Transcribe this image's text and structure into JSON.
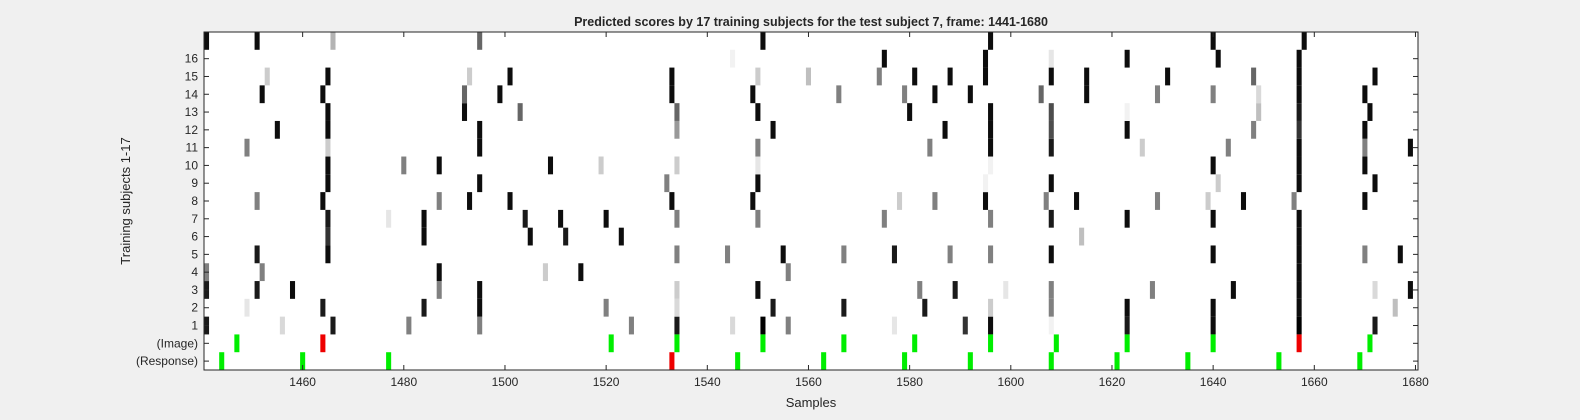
{
  "colors": {
    "background": "#f0f0f0",
    "plot_background": "#ffffff",
    "axis": "#262626",
    "correct_marker": "#00ee00",
    "incorrect_marker": "#ee0000"
  },
  "chart_data": {
    "type": "heatmap",
    "title": "Predicted scores by 17 training subjects for the test subject 7, frame: 1441-1680",
    "xlabel": "Samples",
    "ylabel": "Training subjects 1-17",
    "xlim": [
      1441,
      1680
    ],
    "xticks": [
      1460,
      1480,
      1500,
      1520,
      1540,
      1560,
      1580,
      1600,
      1620,
      1640,
      1660,
      1680
    ],
    "row_labels": [
      "(Response)",
      "(Image)",
      "1",
      "2",
      "3",
      "4",
      "5",
      "6",
      "7",
      "8",
      "9",
      "10",
      "11",
      "12",
      "13",
      "14",
      "15",
      "16",
      ""
    ],
    "grid": false,
    "legend": "none",
    "marker_rows": {
      "image": [
        {
          "x": 1447,
          "color": "green"
        },
        {
          "x": 1464,
          "color": "red"
        },
        {
          "x": 1521,
          "color": "green"
        },
        {
          "x": 1534,
          "color": "green"
        },
        {
          "x": 1551,
          "color": "green"
        },
        {
          "x": 1567,
          "color": "green"
        },
        {
          "x": 1581,
          "color": "green"
        },
        {
          "x": 1596,
          "color": "green"
        },
        {
          "x": 1609,
          "color": "green"
        },
        {
          "x": 1623,
          "color": "green"
        },
        {
          "x": 1640,
          "color": "green"
        },
        {
          "x": 1657,
          "color": "red"
        },
        {
          "x": 1671,
          "color": "green"
        }
      ],
      "response": [
        {
          "x": 1444,
          "color": "green"
        },
        {
          "x": 1460,
          "color": "green"
        },
        {
          "x": 1477,
          "color": "green"
        },
        {
          "x": 1533,
          "color": "red"
        },
        {
          "x": 1546,
          "color": "green"
        },
        {
          "x": 1563,
          "color": "green"
        },
        {
          "x": 1579,
          "color": "green"
        },
        {
          "x": 1592,
          "color": "green"
        },
        {
          "x": 1608,
          "color": "green"
        },
        {
          "x": 1621,
          "color": "green"
        },
        {
          "x": 1635,
          "color": "green"
        },
        {
          "x": 1653,
          "color": "green"
        },
        {
          "x": 1669,
          "color": "green"
        }
      ]
    },
    "subject_scores": [
      {
        "row": 1,
        "marks": [
          [
            1441,
            0.1
          ],
          [
            1456,
            0.85
          ],
          [
            1466,
            0.1
          ],
          [
            1481,
            0.5
          ],
          [
            1495,
            0.5
          ],
          [
            1551,
            0.0
          ],
          [
            1525,
            0.5
          ],
          [
            1534,
            0.1
          ],
          [
            1545,
            0.85
          ],
          [
            1556,
            0.5
          ],
          [
            1577,
            0.9
          ],
          [
            1591,
            0.2
          ],
          [
            1596,
            0.05
          ],
          [
            1608,
            0.95
          ],
          [
            1623,
            0.1
          ],
          [
            1640,
            0.05
          ],
          [
            1657,
            0.0
          ],
          [
            1672,
            0.1
          ]
        ]
      },
      {
        "row": 2,
        "marks": [
          [
            1449,
            0.9
          ],
          [
            1464,
            0.1
          ],
          [
            1484,
            0.1
          ],
          [
            1495,
            0.05
          ],
          [
            1520,
            0.5
          ],
          [
            1534,
            0.85
          ],
          [
            1553,
            0.1
          ],
          [
            1567,
            0.1
          ],
          [
            1583,
            0.1
          ],
          [
            1596,
            0.8
          ],
          [
            1608,
            0.5
          ],
          [
            1623,
            0.05
          ],
          [
            1640,
            0.05
          ],
          [
            1657,
            0.05
          ],
          [
            1676,
            0.75
          ]
        ]
      },
      {
        "row": 3,
        "marks": [
          [
            1441,
            0.1
          ],
          [
            1451,
            0.1
          ],
          [
            1458,
            0.05
          ],
          [
            1487,
            0.5
          ],
          [
            1495,
            0.05
          ],
          [
            1534,
            0.8
          ],
          [
            1550,
            0.05
          ],
          [
            1582,
            0.5
          ],
          [
            1589,
            0.1
          ],
          [
            1599,
            0.9
          ],
          [
            1608,
            0.5
          ],
          [
            1628,
            0.5
          ],
          [
            1644,
            0.05
          ],
          [
            1657,
            0.05
          ],
          [
            1672,
            0.85
          ],
          [
            1679,
            0.05
          ]
        ]
      },
      {
        "row": 4,
        "marks": [
          [
            1441,
            0.5
          ],
          [
            1452,
            0.5
          ],
          [
            1487,
            0.05
          ],
          [
            1508,
            0.8
          ],
          [
            1515,
            0.05
          ],
          [
            1556,
            0.5
          ],
          [
            1657,
            0.05
          ]
        ]
      },
      {
        "row": 5,
        "marks": [
          [
            1451,
            0.1
          ],
          [
            1465,
            0.05
          ],
          [
            1534,
            0.5
          ],
          [
            1544,
            0.5
          ],
          [
            1555,
            0.05
          ],
          [
            1567,
            0.5
          ],
          [
            1577,
            0.1
          ],
          [
            1588,
            0.5
          ],
          [
            1596,
            0.5
          ],
          [
            1608,
            0.05
          ],
          [
            1640,
            0.05
          ],
          [
            1657,
            0.05
          ],
          [
            1670,
            0.5
          ],
          [
            1677,
            0.05
          ]
        ]
      },
      {
        "row": 6,
        "marks": [
          [
            1465,
            0.2
          ],
          [
            1484,
            0.05
          ],
          [
            1505,
            0.05
          ],
          [
            1512,
            0.1
          ],
          [
            1523,
            0.05
          ],
          [
            1614,
            0.75
          ],
          [
            1657,
            0.05
          ]
        ]
      },
      {
        "row": 7,
        "marks": [
          [
            1465,
            0.1
          ],
          [
            1477,
            0.9
          ],
          [
            1484,
            0.05
          ],
          [
            1504,
            0.1
          ],
          [
            1511,
            0.05
          ],
          [
            1520,
            0.05
          ],
          [
            1534,
            0.5
          ],
          [
            1550,
            0.5
          ],
          [
            1575,
            0.5
          ],
          [
            1596,
            0.5
          ],
          [
            1608,
            0.1
          ],
          [
            1623,
            0.05
          ],
          [
            1640,
            0.05
          ],
          [
            1657,
            0.05
          ]
        ]
      },
      {
        "row": 8,
        "marks": [
          [
            1451,
            0.5
          ],
          [
            1464,
            0.05
          ],
          [
            1487,
            0.5
          ],
          [
            1493,
            0.05
          ],
          [
            1501,
            0.05
          ],
          [
            1533,
            0.05
          ],
          [
            1549,
            0.05
          ],
          [
            1578,
            0.8
          ],
          [
            1585,
            0.5
          ],
          [
            1595,
            0.05
          ],
          [
            1607,
            0.5
          ],
          [
            1613,
            0.05
          ],
          [
            1629,
            0.5
          ],
          [
            1639,
            0.8
          ],
          [
            1646,
            0.05
          ],
          [
            1656,
            0.5
          ],
          [
            1670,
            0.05
          ]
        ]
      },
      {
        "row": 9,
        "marks": [
          [
            1465,
            0.05
          ],
          [
            1495,
            0.05
          ],
          [
            1532,
            0.5
          ],
          [
            1550,
            0.05
          ],
          [
            1595,
            0.95
          ],
          [
            1608,
            0.05
          ],
          [
            1641,
            0.8
          ],
          [
            1657,
            0.05
          ],
          [
            1672,
            0.05
          ]
        ]
      },
      {
        "row": 10,
        "marks": [
          [
            1465,
            0.05
          ],
          [
            1480,
            0.5
          ],
          [
            1487,
            0.05
          ],
          [
            1509,
            0.05
          ],
          [
            1519,
            0.8
          ],
          [
            1534,
            0.8
          ],
          [
            1550,
            0.9
          ],
          [
            1596,
            0.95
          ],
          [
            1640,
            0.05
          ],
          [
            1657,
            0.05
          ],
          [
            1670,
            0.05
          ]
        ]
      },
      {
        "row": 11,
        "marks": [
          [
            1449,
            0.5
          ],
          [
            1465,
            0.8
          ],
          [
            1495,
            0.05
          ],
          [
            1550,
            0.5
          ],
          [
            1584,
            0.5
          ],
          [
            1596,
            0.05
          ],
          [
            1608,
            0.1
          ],
          [
            1626,
            0.8
          ],
          [
            1643,
            0.5
          ],
          [
            1657,
            0.05
          ],
          [
            1670,
            0.5
          ],
          [
            1679,
            0.05
          ]
        ]
      },
      {
        "row": 12,
        "marks": [
          [
            1455,
            0.05
          ],
          [
            1465,
            0.05
          ],
          [
            1495,
            0.05
          ],
          [
            1534,
            0.6
          ],
          [
            1553,
            0.05
          ],
          [
            1587,
            0.05
          ],
          [
            1596,
            0.05
          ],
          [
            1608,
            0.3
          ],
          [
            1623,
            0.05
          ],
          [
            1648,
            0.5
          ],
          [
            1657,
            0.2
          ],
          [
            1670,
            0.05
          ]
        ]
      },
      {
        "row": 13,
        "marks": [
          [
            1465,
            0.05
          ],
          [
            1492,
            0.05
          ],
          [
            1503,
            0.4
          ],
          [
            1534,
            0.4
          ],
          [
            1550,
            0.05
          ],
          [
            1580,
            0.05
          ],
          [
            1596,
            0.05
          ],
          [
            1608,
            0.3
          ],
          [
            1623,
            0.95
          ],
          [
            1649,
            0.75
          ],
          [
            1657,
            0.1
          ],
          [
            1671,
            0.05
          ]
        ]
      },
      {
        "row": 14,
        "marks": [
          [
            1452,
            0.05
          ],
          [
            1464,
            0.05
          ],
          [
            1492,
            0.4
          ],
          [
            1499,
            0.05
          ],
          [
            1533,
            0.05
          ],
          [
            1549,
            0.05
          ],
          [
            1566,
            0.5
          ],
          [
            1579,
            0.5
          ],
          [
            1585,
            0.05
          ],
          [
            1592,
            0.05
          ],
          [
            1606,
            0.4
          ],
          [
            1615,
            0.05
          ],
          [
            1629,
            0.5
          ],
          [
            1640,
            0.5
          ],
          [
            1649,
            0.85
          ],
          [
            1657,
            0.05
          ],
          [
            1670,
            0.05
          ]
        ]
      },
      {
        "row": 15,
        "marks": [
          [
            1453,
            0.8
          ],
          [
            1465,
            0.05
          ],
          [
            1493,
            0.8
          ],
          [
            1501,
            0.05
          ],
          [
            1533,
            0.05
          ],
          [
            1550,
            0.8
          ],
          [
            1560,
            0.75
          ],
          [
            1574,
            0.5
          ],
          [
            1581,
            0.05
          ],
          [
            1588,
            0.05
          ],
          [
            1595,
            0.05
          ],
          [
            1608,
            0.05
          ],
          [
            1615,
            0.05
          ],
          [
            1631,
            0.05
          ],
          [
            1648,
            0.4
          ],
          [
            1657,
            0.05
          ],
          [
            1672,
            0.05
          ]
        ]
      },
      {
        "row": 16,
        "marks": [
          [
            1545,
            0.95
          ],
          [
            1575,
            0.05
          ],
          [
            1595,
            0.05
          ],
          [
            1608,
            0.9
          ],
          [
            1623,
            0.05
          ],
          [
            1641,
            0.05
          ],
          [
            1657,
            0.05
          ]
        ]
      },
      {
        "row": 17,
        "marks": [
          [
            1441,
            0.05
          ],
          [
            1451,
            0.05
          ],
          [
            1466,
            0.7
          ],
          [
            1495,
            0.4
          ],
          [
            1551,
            0.05
          ],
          [
            1596,
            0.05
          ],
          [
            1640,
            0.05
          ],
          [
            1658,
            0.05
          ]
        ]
      }
    ]
  }
}
